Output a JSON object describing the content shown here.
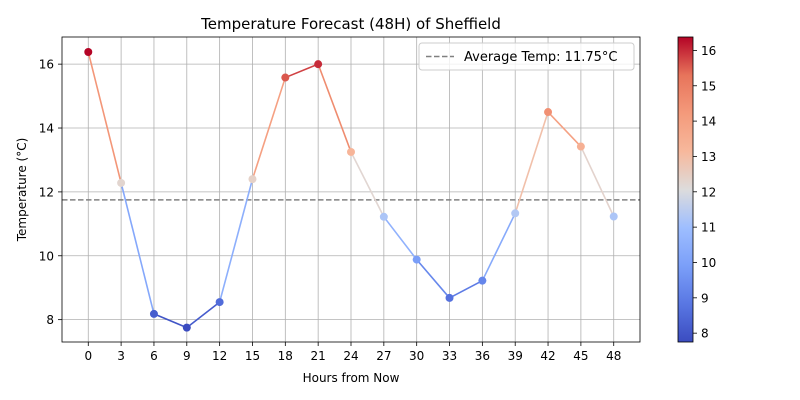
{
  "chart_data": {
    "type": "line",
    "title": "Temperature Forecast (48H) of Sheffield",
    "xlabel": "Hours from Now",
    "ylabel": "Temperature (°C)",
    "x": [
      0,
      3,
      6,
      9,
      12,
      15,
      18,
      21,
      24,
      27,
      30,
      33,
      36,
      39,
      42,
      45,
      48
    ],
    "series": [
      {
        "values": [
          16.38,
          12.28,
          8.18,
          7.75,
          8.55,
          12.4,
          15.58,
          16.0,
          13.25,
          11.22,
          9.88,
          8.68,
          9.22,
          11.33,
          14.5,
          13.42,
          11.23
        ]
      }
    ],
    "xlim": [
      -2.4,
      50.4
    ],
    "ylim": [
      7.3,
      16.85
    ],
    "xticks": [
      "0",
      "3",
      "6",
      "9",
      "12",
      "15",
      "18",
      "21",
      "24",
      "27",
      "30",
      "33",
      "36",
      "39",
      "42",
      "45",
      "48"
    ],
    "yticks": [
      "8",
      "10",
      "12",
      "14",
      "16"
    ],
    "grid": true,
    "reference_line": {
      "value": 11.75,
      "label": "Average Temp: 11.75°C",
      "color": "#808080",
      "style": "dashed"
    },
    "legend_placement": "top-right",
    "colormap": "coolwarm",
    "colorbar": {
      "min": 7.75,
      "max": 16.38,
      "ticks": [
        "8",
        "9",
        "10",
        "11",
        "12",
        "13",
        "14",
        "15",
        "16"
      ]
    }
  }
}
